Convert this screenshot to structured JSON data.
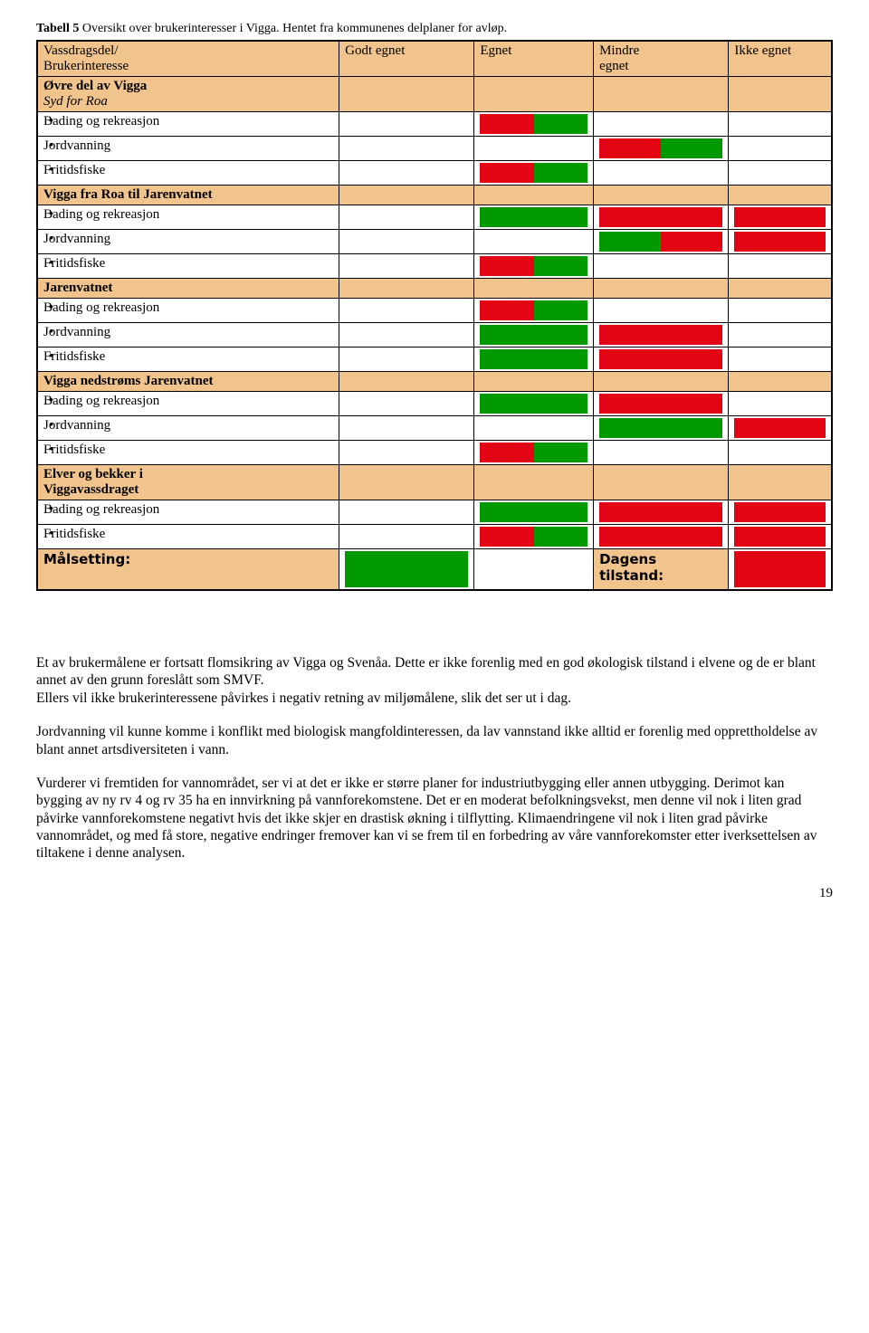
{
  "caption": {
    "bold": "Tabell 5",
    "rest": " Oversikt over brukerinteresser i Vigga. Hentet fra kommunenes delplaner for avløp."
  },
  "headers": {
    "rowLabel1": "Vassdragsdel/",
    "rowLabel2": "Brukerinteresse",
    "c2": "Godt egnet",
    "c3": "Egnet",
    "c4a": "Mindre",
    "c4b": "egnet",
    "c5": "Ikke egnet"
  },
  "sections": [
    {
      "titleBold": "Øvre del av Vigga",
      "titleItal": "Syd for Roa",
      "rows": [
        {
          "label": "Bading og rekreasjon",
          "c2": [
            "blank",
            "blank"
          ],
          "c3": [
            "red",
            "green"
          ],
          "c4": [
            "blank",
            "blank"
          ],
          "c5": [
            "blank",
            "blank"
          ]
        },
        {
          "label": "Jordvanning",
          "c2": [
            "blank",
            "blank"
          ],
          "c3": [
            "blank",
            "blank"
          ],
          "c4": [
            "red",
            "green"
          ],
          "c5": [
            "blank",
            "blank"
          ]
        },
        {
          "label": "Fritidsfiske",
          "c2": [
            "blank",
            "blank"
          ],
          "c3": [
            "red",
            "green"
          ],
          "c4": [
            "blank",
            "blank"
          ],
          "c5": [
            "blank",
            "blank"
          ]
        }
      ]
    },
    {
      "titleBold": "Vigga fra Roa til Jarenvatnet",
      "rows": [
        {
          "label": "Bading og rekreasjon",
          "c2": [
            "blank",
            "blank"
          ],
          "c3": [
            "green",
            "green"
          ],
          "c4": [
            "red",
            "red"
          ],
          "c5": [
            "red",
            "red"
          ]
        },
        {
          "label": "Jordvanning",
          "c2": [
            "blank",
            "blank"
          ],
          "c3": [
            "blank",
            "blank"
          ],
          "c4": [
            "green",
            "red"
          ],
          "c5": [
            "red",
            "red"
          ]
        },
        {
          "label": "Fritidsfiske",
          "c2": [
            "blank",
            "blank"
          ],
          "c3": [
            "red",
            "green"
          ],
          "c4": [
            "blank",
            "blank"
          ],
          "c5": [
            "blank",
            "blank"
          ]
        }
      ]
    },
    {
      "titleBold": "Jarenvatnet",
      "rows": [
        {
          "label": "Bading og rekreasjon",
          "c2": [
            "blank",
            "blank"
          ],
          "c3": [
            "red",
            "green"
          ],
          "c4": [
            "blank",
            "blank"
          ],
          "c5": [
            "blank",
            "blank"
          ]
        },
        {
          "label": "Jordvanning",
          "c2": [
            "blank",
            "blank"
          ],
          "c3": [
            "green",
            "green"
          ],
          "c4": [
            "red",
            "red"
          ],
          "c5": [
            "blank",
            "blank"
          ]
        },
        {
          "label": "Fritidsfiske",
          "c2": [
            "blank",
            "blank"
          ],
          "c3": [
            "green",
            "green"
          ],
          "c4": [
            "red",
            "red"
          ],
          "c5": [
            "blank",
            "blank"
          ]
        }
      ]
    },
    {
      "titleBold": "Vigga nedstrøms Jarenvatnet",
      "rows": [
        {
          "label": "Bading og rekreasjon",
          "c2": [
            "blank",
            "blank"
          ],
          "c3": [
            "green",
            "green"
          ],
          "c4": [
            "red",
            "red"
          ],
          "c5": [
            "blank",
            "blank"
          ]
        },
        {
          "label": "Jordvanning",
          "c2": [
            "blank",
            "blank"
          ],
          "c3": [
            "blank",
            "blank"
          ],
          "c4": [
            "green",
            "green"
          ],
          "c5": [
            "red",
            "red"
          ]
        },
        {
          "label": "Fritidsfiske",
          "c2": [
            "blank",
            "blank"
          ],
          "c3": [
            "red",
            "green"
          ],
          "c4": [
            "blank",
            "blank"
          ],
          "c5": [
            "blank",
            "blank"
          ]
        }
      ]
    },
    {
      "titleBold": "Elver og bekker i",
      "titleBold2": "Viggavassdraget",
      "rows": [
        {
          "label": "Bading og rekreasjon",
          "c2": [
            "blank",
            "blank"
          ],
          "c3": [
            "green",
            "green"
          ],
          "c4": [
            "red",
            "red"
          ],
          "c5": [
            "red",
            "red"
          ]
        },
        {
          "label": "Fritidsfiske",
          "c2": [
            "blank",
            "blank"
          ],
          "c3": [
            "red",
            "green"
          ],
          "c4": [
            "red",
            "red"
          ],
          "c5": [
            "red",
            "red"
          ]
        }
      ]
    }
  ],
  "goal": {
    "label": "Målsetting:",
    "c2": [
      "green",
      "green"
    ],
    "c3": [
      "blank",
      "blank"
    ],
    "statusLabel1": "Dagens",
    "statusLabel2": "tilstand:",
    "c5": [
      "red",
      "red"
    ]
  },
  "colors": {
    "red": "#e30513",
    "green": "#009900"
  },
  "paragraphs": [
    "Et av brukermålene er fortsatt flomsikring av Vigga og Svenåa. Dette er ikke forenlig med en god økologisk tilstand i elvene og de er blant annet av den grunn foreslått som SMVF.\nEllers vil ikke brukerinteressene påvirkes i negativ retning av miljømålene, slik det ser ut i dag.",
    "Jordvanning vil kunne komme i konflikt med biologisk mangfoldinteressen, da lav vannstand ikke alltid er forenlig med opprettholdelse av blant annet artsdiversiteten i vann.",
    "Vurderer vi fremtiden for vannområdet, ser vi at det er ikke er større planer for industriutbygging eller annen utbygging. Derimot kan bygging av ny rv 4 og rv 35 ha en innvirkning på vannforekomstene. Det er en moderat befolkningsvekst, men denne vil nok i liten grad påvirke vannforekomstene negativt hvis det ikke skjer en drastisk økning i tilflytting. Klimaendringene vil nok i liten grad påvirke vannområdet, og med få store, negative endringer fremover kan vi se frem til en forbedring av våre vannforekomster etter iverksettelsen av tiltakene i denne analysen."
  ],
  "pageNumber": "19"
}
